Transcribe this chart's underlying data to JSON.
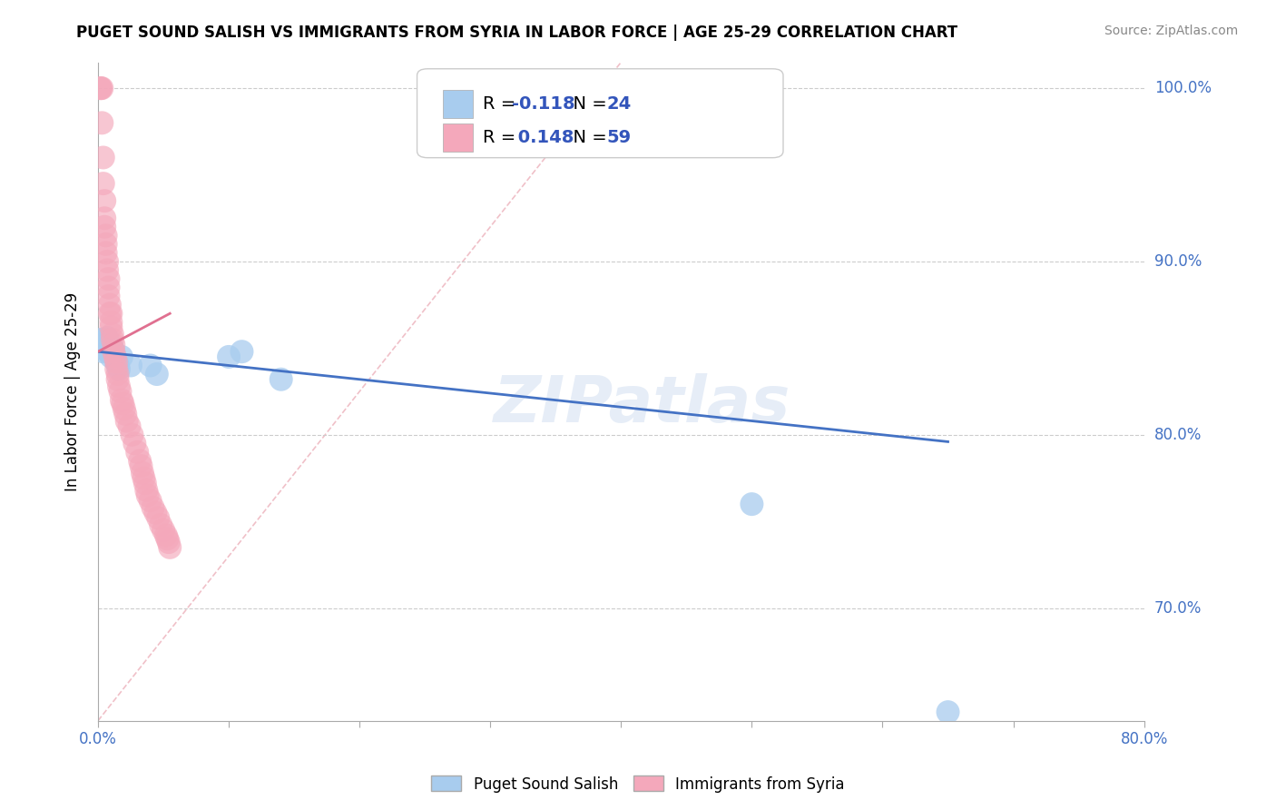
{
  "title": "PUGET SOUND SALISH VS IMMIGRANTS FROM SYRIA IN LABOR FORCE | AGE 25-29 CORRELATION CHART",
  "source": "Source: ZipAtlas.com",
  "ylabel": "In Labor Force | Age 25-29",
  "xlim": [
    0.0,
    0.8
  ],
  "ylim": [
    0.635,
    1.015
  ],
  "ytick_values": [
    1.0,
    0.9,
    0.8,
    0.7
  ],
  "ytick_labels": [
    "100.0%",
    "90.0%",
    "80.0%",
    "70.0%"
  ],
  "watermark": "ZIPatlas",
  "blue_color": "#A8CCEE",
  "pink_color": "#F4A8BB",
  "blue_line_color": "#4472C4",
  "pink_line_color": "#E07090",
  "diag_color": "#F0C0C8",
  "legend_blue_r": "-0.118",
  "legend_blue_n": "24",
  "legend_pink_r": "0.148",
  "legend_pink_n": "59",
  "blue_scatter_x": [
    0.002,
    0.003,
    0.004,
    0.005,
    0.006,
    0.007,
    0.008,
    0.009,
    0.01,
    0.011,
    0.012,
    0.013,
    0.014,
    0.015,
    0.016,
    0.018,
    0.025,
    0.04,
    0.045,
    0.1,
    0.11,
    0.14,
    0.5,
    0.65
  ],
  "blue_scatter_y": [
    0.855,
    0.85,
    0.848,
    0.855,
    0.852,
    0.856,
    0.848,
    0.852,
    0.845,
    0.85,
    0.848,
    0.845,
    0.842,
    0.84,
    0.838,
    0.845,
    0.84,
    0.84,
    0.835,
    0.845,
    0.848,
    0.832,
    0.76,
    0.64
  ],
  "pink_scatter_x": [
    0.002,
    0.002,
    0.003,
    0.003,
    0.004,
    0.004,
    0.005,
    0.005,
    0.005,
    0.006,
    0.006,
    0.006,
    0.007,
    0.007,
    0.008,
    0.008,
    0.008,
    0.009,
    0.009,
    0.01,
    0.01,
    0.01,
    0.011,
    0.011,
    0.012,
    0.012,
    0.013,
    0.014,
    0.014,
    0.015,
    0.015,
    0.016,
    0.017,
    0.018,
    0.019,
    0.02,
    0.021,
    0.022,
    0.024,
    0.026,
    0.028,
    0.03,
    0.032,
    0.033,
    0.034,
    0.035,
    0.036,
    0.037,
    0.038,
    0.04,
    0.042,
    0.044,
    0.046,
    0.048,
    0.05,
    0.052,
    0.053,
    0.054,
    0.055
  ],
  "pink_scatter_y": [
    1.0,
    1.0,
    1.0,
    0.98,
    0.96,
    0.945,
    0.935,
    0.925,
    0.92,
    0.915,
    0.91,
    0.905,
    0.9,
    0.895,
    0.89,
    0.885,
    0.88,
    0.875,
    0.87,
    0.87,
    0.865,
    0.862,
    0.858,
    0.855,
    0.852,
    0.848,
    0.845,
    0.842,
    0.838,
    0.835,
    0.832,
    0.828,
    0.825,
    0.82,
    0.818,
    0.815,
    0.812,
    0.808,
    0.805,
    0.8,
    0.795,
    0.79,
    0.785,
    0.782,
    0.778,
    0.775,
    0.772,
    0.768,
    0.765,
    0.762,
    0.758,
    0.755,
    0.752,
    0.748,
    0.745,
    0.742,
    0.74,
    0.738,
    0.735
  ],
  "blue_trend_x": [
    0.0,
    0.65
  ],
  "blue_trend_y": [
    0.848,
    0.796
  ],
  "pink_trend_x": [
    0.0,
    0.055
  ],
  "pink_trend_y": [
    0.848,
    0.87
  ],
  "diag_line_x": [
    0.0,
    0.4
  ],
  "diag_line_y": [
    0.635,
    1.015
  ]
}
